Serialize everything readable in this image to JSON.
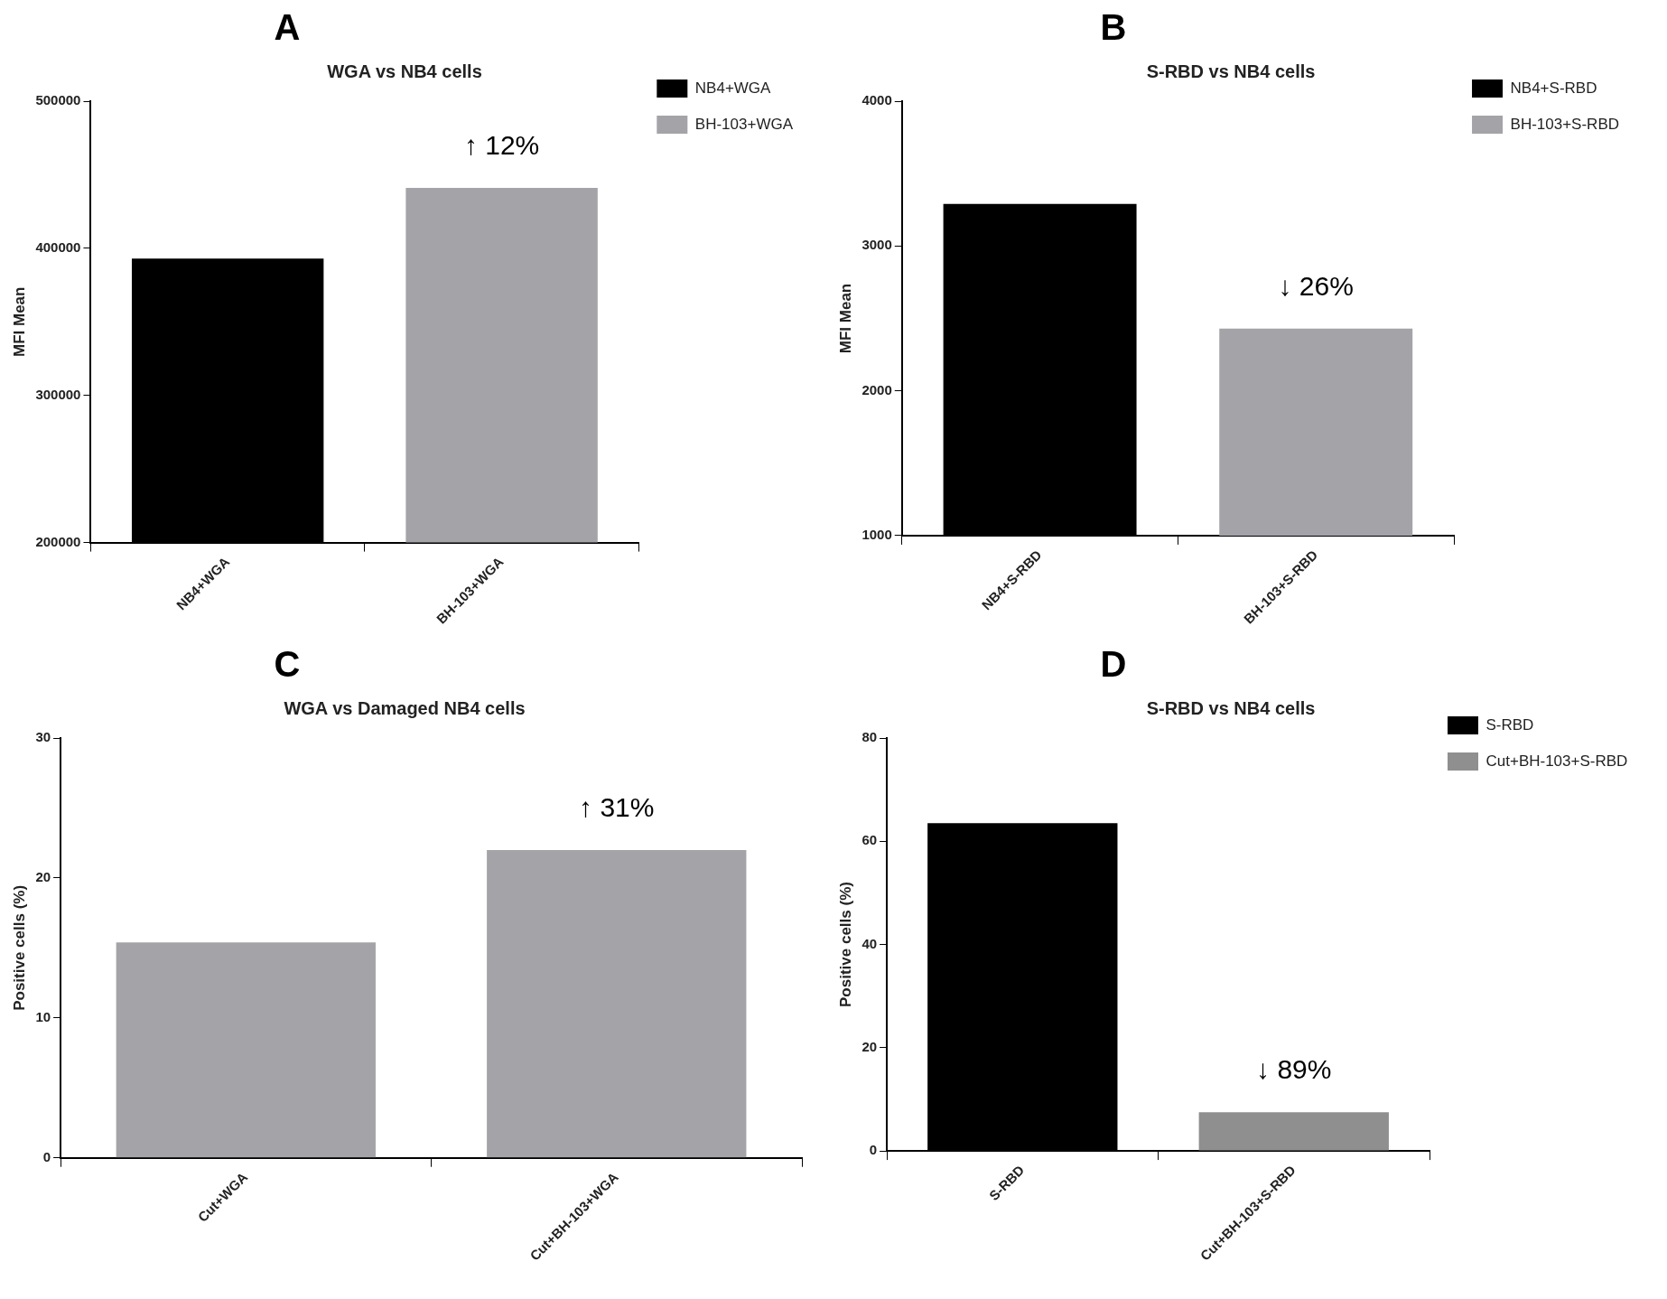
{
  "chart_data": [
    {
      "type": "bar",
      "title": "WGA vs NB4 cells",
      "ylabel": "MFI Mean",
      "categories": [
        "NB4+WGA",
        "BH-103+WGA"
      ],
      "series": [
        {
          "name": "NB4+WGA",
          "color": "#000000",
          "values": [
            393000,
            null
          ]
        },
        {
          "name": "BH-103+WGA",
          "color": "#a3a3a8",
          "values": [
            null,
            441000
          ]
        }
      ],
      "ylim": [
        200000,
        500000
      ],
      "yticks": [
        200000,
        300000,
        400000,
        500000
      ],
      "grid": false,
      "legend": "right",
      "annotations": [
        "A",
        "↑ 12%"
      ]
    },
    {
      "type": "bar",
      "title": "S-RBD vs NB4 cells",
      "ylabel": "MFI Mean",
      "categories": [
        "NB4+S-RBD",
        "BH-103+S-RBD"
      ],
      "series": [
        {
          "name": "NB4+S-RBD",
          "color": "#000000",
          "values": [
            3290,
            null
          ]
        },
        {
          "name": "BH-103+S-RBD",
          "color": "#a3a3a8",
          "values": [
            null,
            2430
          ]
        }
      ],
      "ylim": [
        1000,
        4000
      ],
      "yticks": [
        1000,
        2000,
        3000,
        4000
      ],
      "grid": false,
      "legend": "right",
      "annotations": [
        "B",
        "↓ 26%"
      ]
    },
    {
      "type": "bar",
      "title": "WGA vs Damaged NB4 cells",
      "ylabel": "Positive cells (%)",
      "categories": [
        "Cut+WGA",
        "Cut+BH-103+WGA"
      ],
      "values": [
        15.4,
        22
      ],
      "colors": [
        "#a3a3a8",
        "#a3a3a8"
      ],
      "ylim": [
        0,
        30
      ],
      "yticks": [
        0,
        10,
        20,
        30
      ],
      "grid": false,
      "annotations": [
        "C",
        "↑ 31%"
      ]
    },
    {
      "type": "bar",
      "title": "S-RBD vs NB4 cells",
      "ylabel": "Positive cells (%)",
      "categories": [
        "S-RBD",
        "Cut+BH-103+S-RBD"
      ],
      "series": [
        {
          "name": "S-RBD",
          "color": "#000000",
          "values": [
            63.5,
            null
          ]
        },
        {
          "name": "Cut+BH-103+S-RBD",
          "color": "#8f8f8f",
          "values": [
            null,
            7.5
          ]
        }
      ],
      "ylim": [
        0,
        80
      ],
      "yticks": [
        0,
        20,
        40,
        60,
        80
      ],
      "grid": false,
      "legend": "right",
      "annotations": [
        "D",
        "↓ 89%"
      ]
    }
  ]
}
